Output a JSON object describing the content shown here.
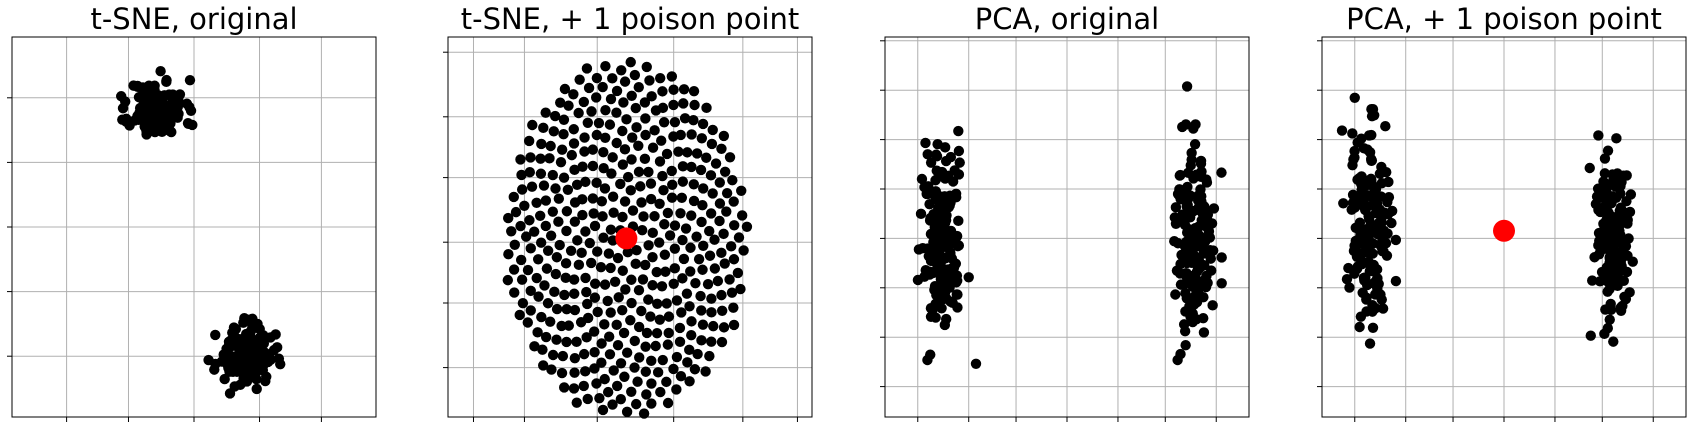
{
  "figure": {
    "background": "#ffffff",
    "point_color": "#000000",
    "poison_color": "#ff0000",
    "grid_color": "#b0b0b0",
    "frame_color": "#000000"
  },
  "chart_data": [
    {
      "type": "scatter",
      "title": "t-SNE, original",
      "xlabel": "",
      "ylabel": "",
      "xlim": [
        0,
        10
      ],
      "ylim": [
        0,
        10
      ],
      "xticks": [
        1.5,
        3.2,
        5.0,
        6.8,
        8.5
      ],
      "yticks": [
        1.6,
        3.3,
        5.0,
        6.7,
        8.4
      ],
      "tick_labels_visible": false,
      "grid": true,
      "clusters": [
        {
          "shape": "blob",
          "cx": 4.0,
          "cy": 8.1,
          "rx": 1.0,
          "ry": 1.0,
          "n": 140,
          "seed": 11
        },
        {
          "shape": "blob",
          "cx": 6.4,
          "cy": 1.6,
          "rx": 1.0,
          "ry": 1.0,
          "n": 140,
          "seed": 23
        }
      ],
      "highlight": []
    },
    {
      "type": "scatter",
      "title": "t-SNE, + 1 poison point",
      "xlabel": "",
      "ylabel": "",
      "xlim": [
        0,
        10
      ],
      "ylim": [
        0,
        10
      ],
      "xticks": [
        0.7,
        2.1,
        4.1,
        6.2,
        8.1,
        9.6
      ],
      "yticks": [
        1.3,
        3.0,
        4.6,
        6.3,
        7.9,
        9.6
      ],
      "tick_labels_visible": false,
      "grid": true,
      "clusters": [
        {
          "shape": "sunflower",
          "cx": 4.9,
          "cy": 4.7,
          "rx": 3.35,
          "ry": 4.7,
          "n": 440,
          "seed": 5
        }
      ],
      "highlight": [
        {
          "x": 4.9,
          "y": 4.7,
          "label": "poison point"
        }
      ]
    },
    {
      "type": "scatter",
      "title": "PCA, original",
      "xlabel": "",
      "ylabel": "",
      "xlim": [
        0,
        10
      ],
      "ylim": [
        0,
        10
      ],
      "xticks": [
        0.9,
        2.3,
        3.6,
        5.0,
        6.4,
        7.7,
        9.1
      ],
      "yticks": [
        0.8,
        2.1,
        3.4,
        4.7,
        6.0,
        7.3,
        8.6,
        9.9
      ],
      "tick_labels_visible": false,
      "grid": true,
      "clusters": [
        {
          "shape": "blob",
          "cx": 1.55,
          "cy": 4.6,
          "rx": 0.75,
          "ry": 3.1,
          "n": 170,
          "seed": 31
        },
        {
          "shape": "blob",
          "cx": 8.5,
          "cy": 4.6,
          "rx": 0.75,
          "ry": 3.1,
          "n": 170,
          "seed": 47
        }
      ],
      "extra_points": [
        {
          "x": 2.5,
          "y": 1.4
        },
        {
          "x": 8.3,
          "y": 8.7
        }
      ],
      "highlight": []
    },
    {
      "type": "scatter",
      "title": "PCA, + 1 poison point",
      "xlabel": "",
      "ylabel": "",
      "xlim": [
        0,
        10
      ],
      "ylim": [
        0,
        10
      ],
      "xticks": [
        0.9,
        2.3,
        3.6,
        5.0,
        6.4,
        7.7,
        9.1
      ],
      "yticks": [
        0.8,
        2.1,
        3.4,
        4.7,
        6.0,
        7.3,
        8.6,
        9.9
      ],
      "tick_labels_visible": false,
      "grid": true,
      "clusters": [
        {
          "shape": "blob",
          "cx": 1.3,
          "cy": 5.0,
          "rx": 0.75,
          "ry": 3.1,
          "n": 170,
          "seed": 59
        },
        {
          "shape": "blob",
          "cx": 8.0,
          "cy": 4.6,
          "rx": 0.75,
          "ry": 3.1,
          "n": 170,
          "seed": 71
        }
      ],
      "extra_points": [
        {
          "x": 0.9,
          "y": 8.4
        }
      ],
      "highlight": [
        {
          "x": 5.0,
          "y": 4.9,
          "label": "poison point"
        }
      ]
    }
  ]
}
